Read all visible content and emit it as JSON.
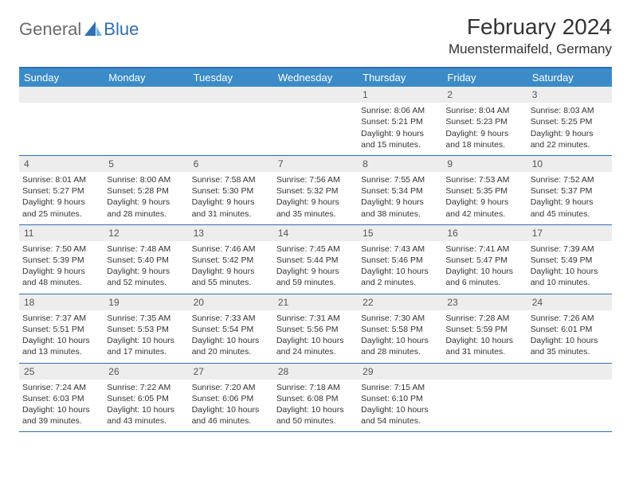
{
  "colors": {
    "header_bg": "#3b8bc8",
    "header_border": "#2f6fb3",
    "daynum_bg": "#ededed",
    "text": "#333333",
    "logo_gray": "#6a6a6a",
    "logo_blue": "#2f6fb3"
  },
  "logo": {
    "part1": "General",
    "part2": "Blue"
  },
  "title": "February 2024",
  "location": "Muenstermaifeld, Germany",
  "day_names": [
    "Sunday",
    "Monday",
    "Tuesday",
    "Wednesday",
    "Thursday",
    "Friday",
    "Saturday"
  ],
  "weeks": [
    [
      null,
      null,
      null,
      null,
      {
        "n": "1",
        "sr": "8:06 AM",
        "ss": "5:21 PM",
        "dl1": "Daylight: 9 hours",
        "dl2": "and 15 minutes."
      },
      {
        "n": "2",
        "sr": "8:04 AM",
        "ss": "5:23 PM",
        "dl1": "Daylight: 9 hours",
        "dl2": "and 18 minutes."
      },
      {
        "n": "3",
        "sr": "8:03 AM",
        "ss": "5:25 PM",
        "dl1": "Daylight: 9 hours",
        "dl2": "and 22 minutes."
      }
    ],
    [
      {
        "n": "4",
        "sr": "8:01 AM",
        "ss": "5:27 PM",
        "dl1": "Daylight: 9 hours",
        "dl2": "and 25 minutes."
      },
      {
        "n": "5",
        "sr": "8:00 AM",
        "ss": "5:28 PM",
        "dl1": "Daylight: 9 hours",
        "dl2": "and 28 minutes."
      },
      {
        "n": "6",
        "sr": "7:58 AM",
        "ss": "5:30 PM",
        "dl1": "Daylight: 9 hours",
        "dl2": "and 31 minutes."
      },
      {
        "n": "7",
        "sr": "7:56 AM",
        "ss": "5:32 PM",
        "dl1": "Daylight: 9 hours",
        "dl2": "and 35 minutes."
      },
      {
        "n": "8",
        "sr": "7:55 AM",
        "ss": "5:34 PM",
        "dl1": "Daylight: 9 hours",
        "dl2": "and 38 minutes."
      },
      {
        "n": "9",
        "sr": "7:53 AM",
        "ss": "5:35 PM",
        "dl1": "Daylight: 9 hours",
        "dl2": "and 42 minutes."
      },
      {
        "n": "10",
        "sr": "7:52 AM",
        "ss": "5:37 PM",
        "dl1": "Daylight: 9 hours",
        "dl2": "and 45 minutes."
      }
    ],
    [
      {
        "n": "11",
        "sr": "7:50 AM",
        "ss": "5:39 PM",
        "dl1": "Daylight: 9 hours",
        "dl2": "and 48 minutes."
      },
      {
        "n": "12",
        "sr": "7:48 AM",
        "ss": "5:40 PM",
        "dl1": "Daylight: 9 hours",
        "dl2": "and 52 minutes."
      },
      {
        "n": "13",
        "sr": "7:46 AM",
        "ss": "5:42 PM",
        "dl1": "Daylight: 9 hours",
        "dl2": "and 55 minutes."
      },
      {
        "n": "14",
        "sr": "7:45 AM",
        "ss": "5:44 PM",
        "dl1": "Daylight: 9 hours",
        "dl2": "and 59 minutes."
      },
      {
        "n": "15",
        "sr": "7:43 AM",
        "ss": "5:46 PM",
        "dl1": "Daylight: 10 hours",
        "dl2": "and 2 minutes."
      },
      {
        "n": "16",
        "sr": "7:41 AM",
        "ss": "5:47 PM",
        "dl1": "Daylight: 10 hours",
        "dl2": "and 6 minutes."
      },
      {
        "n": "17",
        "sr": "7:39 AM",
        "ss": "5:49 PM",
        "dl1": "Daylight: 10 hours",
        "dl2": "and 10 minutes."
      }
    ],
    [
      {
        "n": "18",
        "sr": "7:37 AM",
        "ss": "5:51 PM",
        "dl1": "Daylight: 10 hours",
        "dl2": "and 13 minutes."
      },
      {
        "n": "19",
        "sr": "7:35 AM",
        "ss": "5:53 PM",
        "dl1": "Daylight: 10 hours",
        "dl2": "and 17 minutes."
      },
      {
        "n": "20",
        "sr": "7:33 AM",
        "ss": "5:54 PM",
        "dl1": "Daylight: 10 hours",
        "dl2": "and 20 minutes."
      },
      {
        "n": "21",
        "sr": "7:31 AM",
        "ss": "5:56 PM",
        "dl1": "Daylight: 10 hours",
        "dl2": "and 24 minutes."
      },
      {
        "n": "22",
        "sr": "7:30 AM",
        "ss": "5:58 PM",
        "dl1": "Daylight: 10 hours",
        "dl2": "and 28 minutes."
      },
      {
        "n": "23",
        "sr": "7:28 AM",
        "ss": "5:59 PM",
        "dl1": "Daylight: 10 hours",
        "dl2": "and 31 minutes."
      },
      {
        "n": "24",
        "sr": "7:26 AM",
        "ss": "6:01 PM",
        "dl1": "Daylight: 10 hours",
        "dl2": "and 35 minutes."
      }
    ],
    [
      {
        "n": "25",
        "sr": "7:24 AM",
        "ss": "6:03 PM",
        "dl1": "Daylight: 10 hours",
        "dl2": "and 39 minutes."
      },
      {
        "n": "26",
        "sr": "7:22 AM",
        "ss": "6:05 PM",
        "dl1": "Daylight: 10 hours",
        "dl2": "and 43 minutes."
      },
      {
        "n": "27",
        "sr": "7:20 AM",
        "ss": "6:06 PM",
        "dl1": "Daylight: 10 hours",
        "dl2": "and 46 minutes."
      },
      {
        "n": "28",
        "sr": "7:18 AM",
        "ss": "6:08 PM",
        "dl1": "Daylight: 10 hours",
        "dl2": "and 50 minutes."
      },
      {
        "n": "29",
        "sr": "7:15 AM",
        "ss": "6:10 PM",
        "dl1": "Daylight: 10 hours",
        "dl2": "and 54 minutes."
      },
      null,
      null
    ]
  ],
  "labels": {
    "sunrise_prefix": "Sunrise: ",
    "sunset_prefix": "Sunset: "
  }
}
